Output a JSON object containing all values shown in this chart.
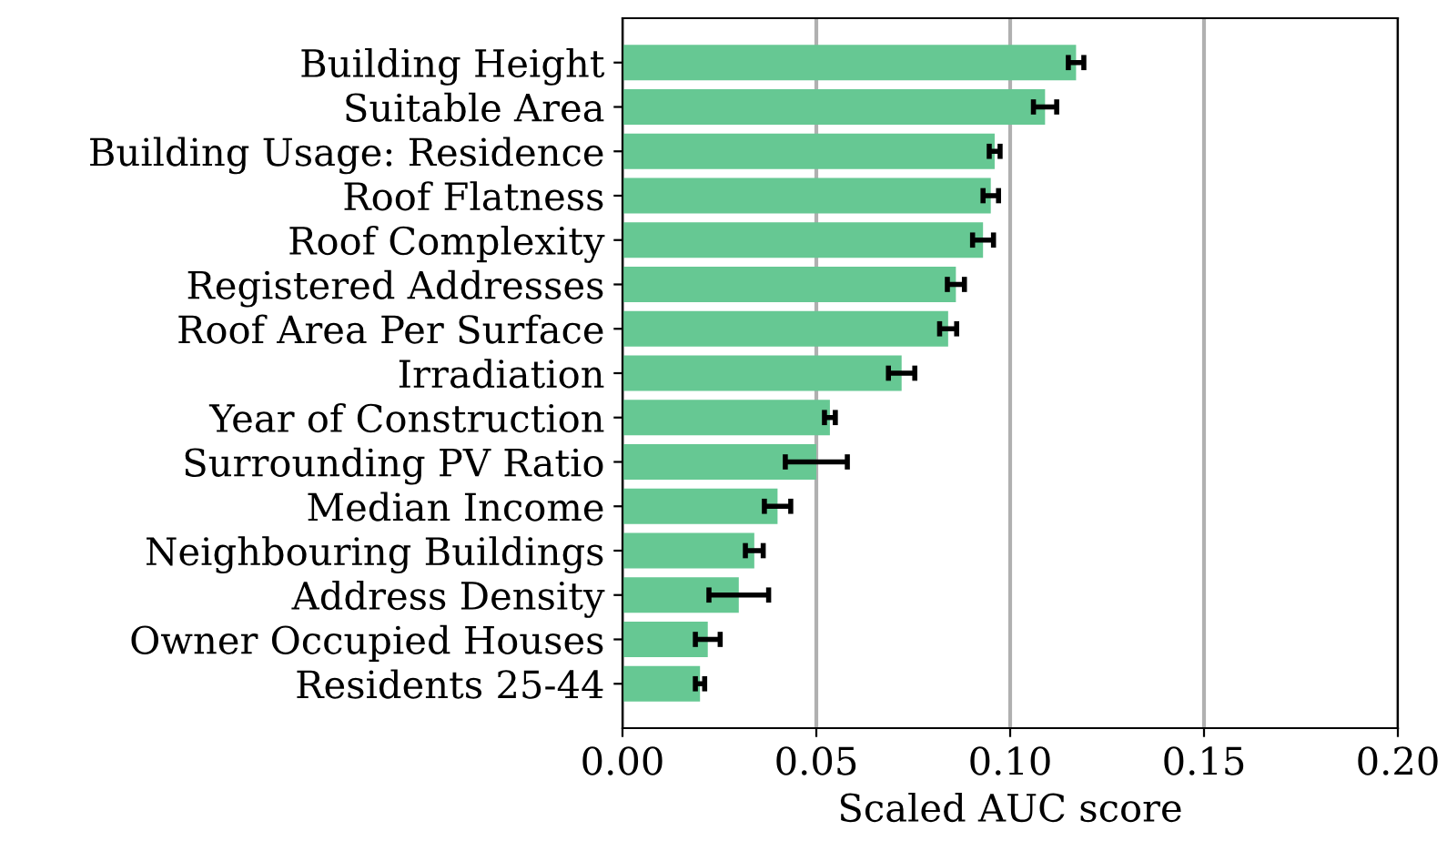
{
  "chart_data": {
    "type": "bar",
    "orientation": "horizontal",
    "xlabel": "Scaled AUC score",
    "categories": [
      "Building Height",
      "Suitable Area",
      "Building Usage: Residence",
      "Roof Flatness",
      "Roof Complexity",
      "Registered Addresses",
      "Roof Area Per Surface",
      "Irradiation",
      "Year of Construction",
      "Surrounding PV Ratio",
      "Median Income",
      "Neighbouring Buildings",
      "Address Density",
      "Owner Occupied Houses",
      "Residents 25-44"
    ],
    "values": [
      0.117,
      0.109,
      0.096,
      0.095,
      0.093,
      0.086,
      0.084,
      0.072,
      0.0535,
      0.05,
      0.04,
      0.034,
      0.03,
      0.022,
      0.02
    ],
    "errors": [
      0.002,
      0.003,
      0.0014,
      0.002,
      0.0027,
      0.0022,
      0.0022,
      0.0034,
      0.0014,
      0.008,
      0.0034,
      0.0023,
      0.0077,
      0.0032,
      0.0012
    ],
    "color": "#66c893",
    "xlim": [
      0,
      0.2
    ],
    "xticks": [
      {
        "value": 0,
        "label": "0.00"
      },
      {
        "value": 0.05,
        "label": "0.05"
      },
      {
        "value": 0.1,
        "label": "0.10"
      },
      {
        "value": 0.15,
        "label": "0.15"
      },
      {
        "value": 0.2,
        "label": "0.20"
      }
    ],
    "grid": "x"
  }
}
